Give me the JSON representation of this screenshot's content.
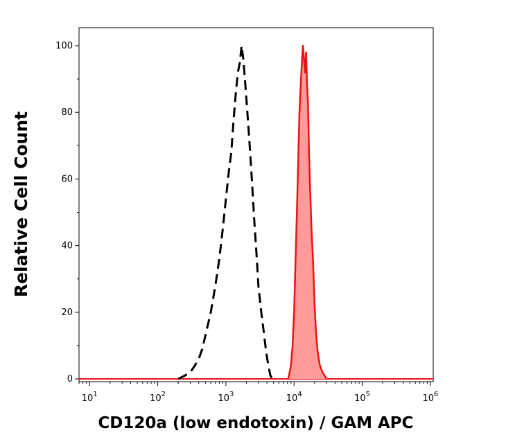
{
  "chart_data": {
    "type": "area",
    "xlabel": "CD120a (low endotoxin) / GAM APC",
    "ylabel": "Relative Cell Count",
    "x_scale": "log",
    "xlim": [
      7,
      1100000
    ],
    "ylim": [
      0,
      100
    ],
    "y_ticks": [
      0,
      20,
      40,
      60,
      80,
      100
    ],
    "x_ticks": [
      {
        "value": 10,
        "base": "10",
        "exp": "1"
      },
      {
        "value": 100,
        "base": "10",
        "exp": "2"
      },
      {
        "value": 1000,
        "base": "10",
        "exp": "3"
      },
      {
        "value": 10000,
        "base": "10",
        "exp": "4"
      },
      {
        "value": 100000,
        "base": "10",
        "exp": "5"
      },
      {
        "value": 1000000,
        "base": "10",
        "exp": "6"
      }
    ],
    "grid": false,
    "legend": "none",
    "series": [
      {
        "style": "dashed",
        "color": "#000000",
        "fill": "none",
        "x": [
          200,
          250,
          300,
          350,
          400,
          450,
          500,
          600,
          700,
          800,
          900,
          1000,
          1100,
          1200,
          1300,
          1400,
          1500,
          1600,
          1700,
          1800,
          1900,
          2000,
          2200,
          2400,
          2600,
          2800,
          3000,
          3300,
          3600,
          3900,
          4200,
          4500,
          4800
        ],
        "values": [
          0,
          1,
          2,
          4,
          6,
          9,
          13,
          20,
          28,
          36,
          45,
          54,
          62,
          68,
          78,
          86,
          92,
          95,
          100,
          96,
          90,
          84,
          72,
          60,
          48,
          38,
          28,
          20,
          14,
          8,
          4,
          1,
          0
        ]
      },
      {
        "style": "solid",
        "color": "#ee1111",
        "fill": "#ff9b9b",
        "x": [
          8200,
          9000,
          9500,
          10000,
          10500,
          11000,
          11500,
          12000,
          12500,
          13000,
          13500,
          14000,
          14500,
          15000,
          15500,
          16000,
          16500,
          17000,
          18000,
          19000,
          20000,
          21000,
          22000,
          23000,
          24000,
          26000,
          28000,
          30000
        ],
        "values": [
          0,
          4,
          10,
          20,
          35,
          50,
          65,
          80,
          88,
          95,
          100,
          96,
          92,
          98,
          88,
          83,
          70,
          60,
          45,
          35,
          22,
          14,
          9,
          6,
          4,
          2,
          1,
          0
        ]
      }
    ]
  }
}
